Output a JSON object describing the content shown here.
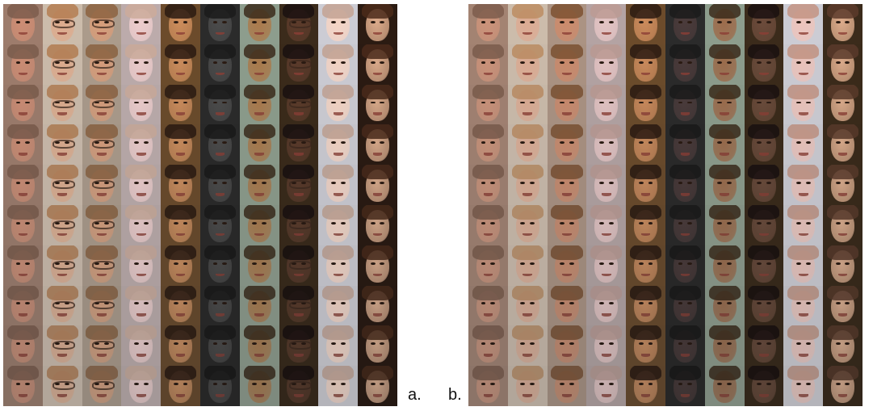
{
  "panels": [
    {
      "id": "a",
      "label": "a.",
      "rows": 10,
      "columns": [
        {
          "skin": "#c98a72",
          "hair": "#7a5a4a",
          "bg": "#9a7a6a"
        },
        {
          "skin": "#d9a88a",
          "hair": "#b07a50",
          "bg": "#c8b8a8",
          "glasses": true
        },
        {
          "skin": "#d39a78",
          "hair": "#8a6040",
          "bg": "#a89888",
          "glasses": true
        },
        {
          "skin": "#e8c8c8",
          "hair": "#c8a898",
          "bg": "#b8a8a8"
        },
        {
          "skin": "#c98a5a",
          "hair": "#2a1a12",
          "bg": "#6a4a2a"
        },
        {
          "skin": "#4a4a4a",
          "hair": "#1a1a1a",
          "bg": "#2a2a2a"
        },
        {
          "skin": "#a8784a",
          "hair": "#3a2a1a",
          "bg": "#8a9a8a"
        },
        {
          "skin": "#5a3a2a",
          "hair": "#1a1010",
          "bg": "#3a2a1a",
          "glasses": true
        },
        {
          "skin": "#f0d0c0",
          "hair": "#c0a090",
          "bg": "#c8c8d0"
        },
        {
          "skin": "#d8a888",
          "hair": "#4a2a1a",
          "bg": "#2a1a12"
        }
      ]
    },
    {
      "id": "b",
      "label": "b.",
      "rows": 10,
      "columns": [
        {
          "skin": "#c89078",
          "hair": "#7a5a4a",
          "bg": "#a08070"
        },
        {
          "skin": "#d8a890",
          "hair": "#b88a60",
          "bg": "#c8b8a8"
        },
        {
          "skin": "#c8886a",
          "hair": "#7a5030",
          "bg": "#a89080"
        },
        {
          "skin": "#e0c0c0",
          "hair": "#b89890",
          "bg": "#b0a0a0"
        },
        {
          "skin": "#c8885a",
          "hair": "#2a1a12",
          "bg": "#6a4a2a"
        },
        {
          "skin": "#4a3a3a",
          "hair": "#1a1a1a",
          "bg": "#2a2a2a"
        },
        {
          "skin": "#9a6a4a",
          "hair": "#3a2a1a",
          "bg": "#8a9a8a"
        },
        {
          "skin": "#6a4a3a",
          "hair": "#1a1010",
          "bg": "#3a2a1a"
        },
        {
          "skin": "#e8c0b8",
          "hair": "#c09080",
          "bg": "#c8c8d0"
        },
        {
          "skin": "#d8a888",
          "hair": "#5a3a2a",
          "bg": "#3a2a1a"
        }
      ]
    }
  ]
}
